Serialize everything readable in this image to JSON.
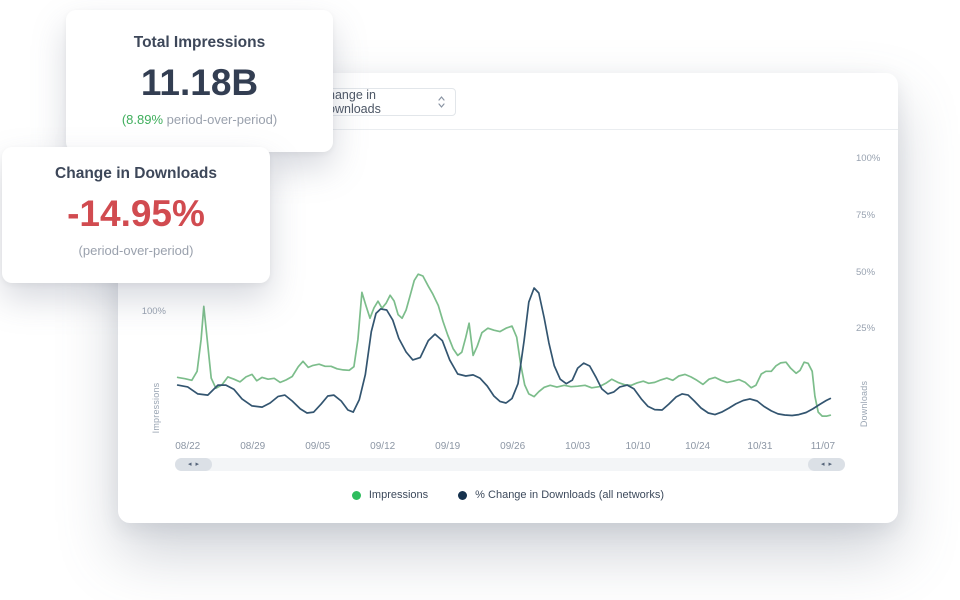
{
  "colors": {
    "accent_green": "#3fae5c",
    "negative_red": "#d14b50",
    "line_green": "#7cbd8b",
    "line_navy": "#335570",
    "legend_green": "#2fbd5e",
    "legend_navy": "#16324e"
  },
  "icons": {
    "select_chevron": "up-down-chevron",
    "scroll_left_arrow": "◂",
    "scroll_right_arrow": "▸"
  },
  "card_impressions": {
    "title": "Total Impressions",
    "value": "11.18B",
    "delta": "(8.89%",
    "delta_suffix": " period-over-period)"
  },
  "card_downloads": {
    "title": "Change in Downloads",
    "value": "-14.95%",
    "note": "(period-over-period)"
  },
  "toolbar": {
    "metric_select_value": "Change in Downloads"
  },
  "legend": [
    {
      "label": "Impressions",
      "color": "#2fbd5e"
    },
    {
      "label": "% Change in Downloads (all networks)",
      "color": "#16324e"
    }
  ],
  "chart_data": {
    "type": "line",
    "grid": "off",
    "x_axis": {
      "ticks": [
        {
          "label": "08/22",
          "pos": 0.019
        },
        {
          "label": "08/29",
          "pos": 0.116
        },
        {
          "label": "09/05",
          "pos": 0.213
        },
        {
          "label": "09/12",
          "pos": 0.31
        },
        {
          "label": "09/19",
          "pos": 0.407
        },
        {
          "label": "09/26",
          "pos": 0.504
        },
        {
          "label": "10/03",
          "pos": 0.601
        },
        {
          "label": "10/10",
          "pos": 0.691
        },
        {
          "label": "10/24",
          "pos": 0.78
        },
        {
          "label": "10/31",
          "pos": 0.873
        },
        {
          "label": "11/07",
          "pos": 0.967
        }
      ]
    },
    "left_axis": {
      "label": "Impressions",
      "unit": "%",
      "ticks": [
        100
      ],
      "range": [
        45,
        176
      ]
    },
    "right_axis": {
      "label": "Downloads",
      "unit": "%",
      "ticks": [
        25,
        50,
        75,
        100
      ],
      "range": [
        -22.5,
        108.5
      ]
    },
    "series": [
      {
        "name": "Impressions",
        "axis": "left",
        "color": "#7cbd8b",
        "points": [
          [
            0.004,
            71.3
          ],
          [
            0.015,
            70.7
          ],
          [
            0.025,
            70.0
          ],
          [
            0.033,
            74.0
          ],
          [
            0.039,
            88.0
          ],
          [
            0.043,
            102.6
          ],
          [
            0.048,
            88.0
          ],
          [
            0.054,
            71.0
          ],
          [
            0.061,
            66.5
          ],
          [
            0.07,
            68.0
          ],
          [
            0.079,
            71.5
          ],
          [
            0.088,
            70.5
          ],
          [
            0.097,
            69.3
          ],
          [
            0.106,
            71.5
          ],
          [
            0.115,
            72.6
          ],
          [
            0.122,
            69.8
          ],
          [
            0.13,
            71.3
          ],
          [
            0.139,
            70.5
          ],
          [
            0.148,
            70.9
          ],
          [
            0.157,
            69.1
          ],
          [
            0.166,
            70.2
          ],
          [
            0.175,
            71.7
          ],
          [
            0.184,
            76.0
          ],
          [
            0.191,
            78.4
          ],
          [
            0.199,
            75.7
          ],
          [
            0.206,
            76.6
          ],
          [
            0.215,
            77.1
          ],
          [
            0.224,
            76.2
          ],
          [
            0.233,
            76.2
          ],
          [
            0.242,
            75.1
          ],
          [
            0.251,
            74.6
          ],
          [
            0.26,
            74.4
          ],
          [
            0.267,
            76.0
          ],
          [
            0.273,
            88.0
          ],
          [
            0.279,
            108.8
          ],
          [
            0.285,
            103.0
          ],
          [
            0.291,
            97.4
          ],
          [
            0.297,
            102.0
          ],
          [
            0.303,
            104.9
          ],
          [
            0.309,
            101.8
          ],
          [
            0.315,
            104.0
          ],
          [
            0.321,
            107.5
          ],
          [
            0.327,
            105.0
          ],
          [
            0.333,
            99.0
          ],
          [
            0.339,
            97.4
          ],
          [
            0.345,
            101.0
          ],
          [
            0.351,
            107.5
          ],
          [
            0.357,
            114.0
          ],
          [
            0.363,
            116.8
          ],
          [
            0.37,
            116.0
          ],
          [
            0.378,
            111.5
          ],
          [
            0.385,
            108.0
          ],
          [
            0.393,
            103.0
          ],
          [
            0.4,
            96.0
          ],
          [
            0.407,
            90.0
          ],
          [
            0.415,
            84.0
          ],
          [
            0.422,
            81.0
          ],
          [
            0.428,
            82.4
          ],
          [
            0.434,
            89.0
          ],
          [
            0.439,
            95.2
          ],
          [
            0.445,
            81.0
          ],
          [
            0.451,
            85.0
          ],
          [
            0.458,
            91.0
          ],
          [
            0.467,
            93.0
          ],
          [
            0.476,
            92.1
          ],
          [
            0.485,
            91.5
          ],
          [
            0.494,
            93.0
          ],
          [
            0.503,
            93.9
          ],
          [
            0.51,
            89.0
          ],
          [
            0.516,
            77.0
          ],
          [
            0.522,
            68.0
          ],
          [
            0.528,
            64.0
          ],
          [
            0.536,
            62.8
          ],
          [
            0.543,
            65.0
          ],
          [
            0.551,
            66.9
          ],
          [
            0.56,
            67.8
          ],
          [
            0.57,
            67.0
          ],
          [
            0.581,
            67.8
          ],
          [
            0.591,
            67.2
          ],
          [
            0.601,
            67.4
          ],
          [
            0.612,
            67.8
          ],
          [
            0.622,
            66.7
          ],
          [
            0.633,
            67.2
          ],
          [
            0.643,
            68.7
          ],
          [
            0.652,
            70.5
          ],
          [
            0.661,
            69.1
          ],
          [
            0.672,
            68.0
          ],
          [
            0.681,
            67.8
          ],
          [
            0.69,
            68.9
          ],
          [
            0.699,
            69.6
          ],
          [
            0.707,
            68.7
          ],
          [
            0.716,
            69.1
          ],
          [
            0.725,
            70.2
          ],
          [
            0.734,
            71.0
          ],
          [
            0.743,
            70.0
          ],
          [
            0.752,
            71.9
          ],
          [
            0.761,
            72.6
          ],
          [
            0.77,
            71.5
          ],
          [
            0.779,
            70.0
          ],
          [
            0.788,
            68.2
          ],
          [
            0.797,
            70.5
          ],
          [
            0.806,
            71.3
          ],
          [
            0.815,
            70.0
          ],
          [
            0.824,
            69.1
          ],
          [
            0.833,
            69.6
          ],
          [
            0.842,
            70.3
          ],
          [
            0.851,
            69.1
          ],
          [
            0.86,
            66.7
          ],
          [
            0.867,
            67.8
          ],
          [
            0.875,
            72.8
          ],
          [
            0.882,
            74.0
          ],
          [
            0.89,
            74.0
          ],
          [
            0.897,
            76.4
          ],
          [
            0.904,
            77.7
          ],
          [
            0.912,
            78.0
          ],
          [
            0.919,
            75.3
          ],
          [
            0.927,
            73.1
          ],
          [
            0.933,
            74.4
          ],
          [
            0.939,
            78.0
          ],
          [
            0.945,
            77.5
          ],
          [
            0.951,
            74.0
          ],
          [
            0.955,
            63.0
          ],
          [
            0.96,
            56.0
          ],
          [
            0.966,
            54.2
          ],
          [
            0.973,
            54.2
          ],
          [
            0.978,
            54.6
          ]
        ]
      },
      {
        "name": "% Change in Downloads (all networks)",
        "axis": "right",
        "color": "#335570",
        "points": [
          [
            0.004,
            0.4
          ],
          [
            0.019,
            -0.4
          ],
          [
            0.034,
            -3.5
          ],
          [
            0.049,
            -4.0
          ],
          [
            0.064,
            0.4
          ],
          [
            0.076,
            0.4
          ],
          [
            0.088,
            -1.5
          ],
          [
            0.1,
            -5.7
          ],
          [
            0.115,
            -8.8
          ],
          [
            0.13,
            -9.3
          ],
          [
            0.142,
            -7.5
          ],
          [
            0.154,
            -4.6
          ],
          [
            0.164,
            -4.0
          ],
          [
            0.175,
            -6.6
          ],
          [
            0.187,
            -10.1
          ],
          [
            0.197,
            -11.9
          ],
          [
            0.207,
            -11.5
          ],
          [
            0.218,
            -8.0
          ],
          [
            0.228,
            -4.4
          ],
          [
            0.237,
            -4.0
          ],
          [
            0.248,
            -6.6
          ],
          [
            0.258,
            -10.6
          ],
          [
            0.266,
            -11.5
          ],
          [
            0.275,
            -6.0
          ],
          [
            0.284,
            5.0
          ],
          [
            0.293,
            24.0
          ],
          [
            0.3,
            32.0
          ],
          [
            0.307,
            34.0
          ],
          [
            0.316,
            33.5
          ],
          [
            0.325,
            29.0
          ],
          [
            0.334,
            21.0
          ],
          [
            0.345,
            15.0
          ],
          [
            0.355,
            11.5
          ],
          [
            0.366,
            12.5
          ],
          [
            0.378,
            20.0
          ],
          [
            0.388,
            22.9
          ],
          [
            0.399,
            20.0
          ],
          [
            0.41,
            11.5
          ],
          [
            0.422,
            5.3
          ],
          [
            0.434,
            4.4
          ],
          [
            0.445,
            4.9
          ],
          [
            0.455,
            3.5
          ],
          [
            0.466,
            0.0
          ],
          [
            0.476,
            -4.4
          ],
          [
            0.485,
            -6.8
          ],
          [
            0.494,
            -7.5
          ],
          [
            0.503,
            -5.5
          ],
          [
            0.512,
            1.0
          ],
          [
            0.521,
            20.0
          ],
          [
            0.528,
            37.0
          ],
          [
            0.536,
            43.2
          ],
          [
            0.543,
            41.0
          ],
          [
            0.551,
            30.0
          ],
          [
            0.558,
            19.0
          ],
          [
            0.566,
            9.0
          ],
          [
            0.575,
            3.0
          ],
          [
            0.584,
            1.0
          ],
          [
            0.593,
            2.6
          ],
          [
            0.601,
            7.9
          ],
          [
            0.61,
            10.1
          ],
          [
            0.619,
            8.8
          ],
          [
            0.628,
            4.0
          ],
          [
            0.637,
            -1.3
          ],
          [
            0.646,
            -3.5
          ],
          [
            0.655,
            -2.6
          ],
          [
            0.664,
            -0.4
          ],
          [
            0.675,
            0.4
          ],
          [
            0.685,
            -1.3
          ],
          [
            0.696,
            -5.7
          ],
          [
            0.706,
            -9.0
          ],
          [
            0.716,
            -10.4
          ],
          [
            0.727,
            -10.6
          ],
          [
            0.737,
            -8.0
          ],
          [
            0.748,
            -4.8
          ],
          [
            0.757,
            -3.5
          ],
          [
            0.766,
            -4.0
          ],
          [
            0.775,
            -6.6
          ],
          [
            0.785,
            -9.7
          ],
          [
            0.796,
            -11.9
          ],
          [
            0.806,
            -12.6
          ],
          [
            0.816,
            -11.5
          ],
          [
            0.827,
            -9.7
          ],
          [
            0.837,
            -7.9
          ],
          [
            0.848,
            -6.4
          ],
          [
            0.858,
            -5.7
          ],
          [
            0.869,
            -6.6
          ],
          [
            0.879,
            -9.0
          ],
          [
            0.89,
            -11.0
          ],
          [
            0.9,
            -12.3
          ],
          [
            0.91,
            -12.8
          ],
          [
            0.921,
            -13.0
          ],
          [
            0.931,
            -12.6
          ],
          [
            0.942,
            -11.7
          ],
          [
            0.952,
            -10.1
          ],
          [
            0.963,
            -8.0
          ],
          [
            0.972,
            -6.4
          ],
          [
            0.978,
            -5.5
          ]
        ]
      }
    ]
  }
}
